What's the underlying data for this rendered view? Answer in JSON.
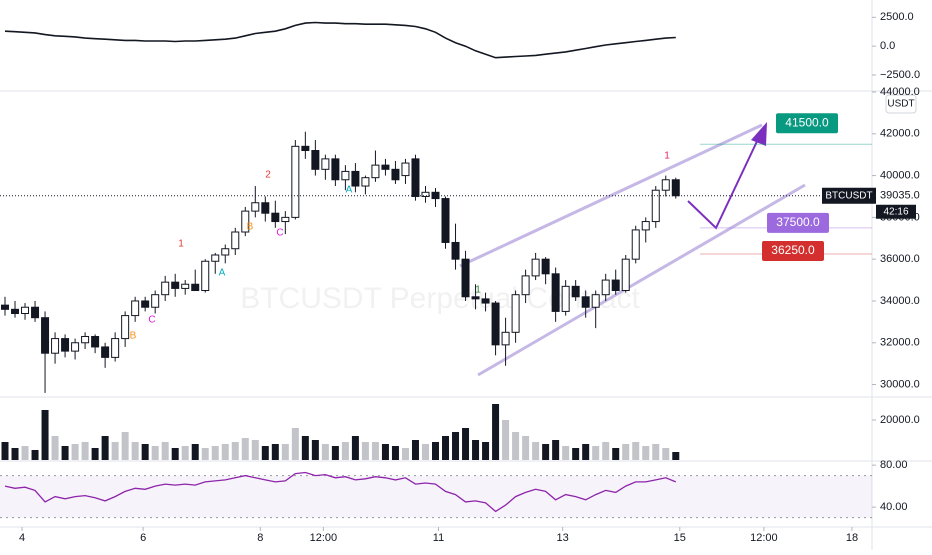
{
  "chart_data": [
    {
      "type": "line",
      "color": "#131722",
      "values": [
        1300,
        1250,
        1200,
        1150,
        1000,
        900,
        850,
        800,
        700,
        650,
        600,
        550,
        500,
        500,
        450,
        450,
        450,
        400,
        450,
        450,
        500,
        550,
        600,
        700,
        900,
        1100,
        1200,
        1300,
        1500,
        1800,
        2000,
        2050,
        2000,
        2000,
        1950,
        1950,
        1900,
        1900,
        1900,
        1850,
        1800,
        1700,
        1500,
        1200,
        700,
        300,
        0,
        -400,
        -700,
        -1000,
        -950,
        -900,
        -850,
        -800,
        -700,
        -600,
        -500,
        -350,
        -200,
        -50,
        100,
        200,
        300,
        400,
        500,
        600,
        700,
        750
      ],
      "ylim": [
        -3800,
        4000
      ],
      "yticks": [
        {
          "value": 2500,
          "label": "2500.0"
        },
        {
          "value": 0,
          "label": "0.0"
        },
        {
          "value": -2500,
          "label": "−2500.0"
        }
      ]
    },
    {
      "type": "candlestick",
      "symbol": "BTCUSDT",
      "currency": "USDT",
      "watermark": "BTCUSDT Perpetual Contract",
      "x": [
        0,
        1,
        2,
        3,
        4,
        5,
        6,
        7,
        8,
        9,
        10,
        11,
        12,
        13,
        14,
        15,
        16,
        17,
        18,
        19,
        20,
        21,
        22,
        23,
        24,
        25,
        26,
        27,
        28,
        29,
        30,
        31,
        32,
        33,
        34,
        35,
        36,
        37,
        38,
        39,
        40,
        41,
        42,
        43,
        44,
        45,
        46,
        47,
        48,
        49,
        50,
        51,
        52,
        53,
        54,
        55,
        56,
        57,
        58,
        59,
        60,
        61,
        62,
        63,
        64,
        65,
        66,
        67
      ],
      "open": [
        33800,
        33600,
        33400,
        33700,
        33200,
        31500,
        32200,
        31600,
        32000,
        32300,
        31800,
        31300,
        32200,
        33300,
        34000,
        33700,
        34300,
        34900,
        34600,
        34800,
        34500,
        35900,
        36200,
        36500,
        37300,
        38300,
        38700,
        38200,
        37800,
        38000,
        41400,
        41200,
        40300,
        40800,
        39800,
        40200,
        39500,
        39900,
        40500,
        40300,
        40000,
        40800,
        39000,
        39200,
        38900,
        36800,
        36000,
        34200,
        34100,
        33900,
        31900,
        32500,
        34300,
        35200,
        36000,
        35300,
        33500,
        34700,
        34200,
        33700,
        34300,
        35000,
        34500,
        36000,
        37400,
        37800,
        39300,
        39800
      ],
      "high": [
        34200,
        34000,
        33900,
        34000,
        33500,
        32500,
        32400,
        32200,
        32500,
        32400,
        32000,
        32500,
        33500,
        34200,
        34200,
        34500,
        35200,
        35300,
        35000,
        35500,
        36000,
        36300,
        36700,
        37500,
        38500,
        39500,
        39000,
        38800,
        38300,
        41700,
        42100,
        41700,
        41000,
        41000,
        40500,
        40600,
        40000,
        41200,
        40800,
        40700,
        40800,
        41000,
        39500,
        39400,
        39000,
        37700,
        36400,
        34800,
        34400,
        34000,
        33200,
        34500,
        35500,
        36300,
        36100,
        35600,
        35000,
        35000,
        34500,
        34500,
        35300,
        35500,
        36200,
        37600,
        38000,
        39500,
        40000,
        39900
      ],
      "low": [
        33300,
        33200,
        33100,
        33000,
        29600,
        31000,
        31300,
        31200,
        31700,
        31500,
        30800,
        31100,
        31800,
        33000,
        33500,
        33400,
        34000,
        34200,
        34300,
        34500,
        34400,
        35300,
        35800,
        36200,
        37100,
        38000,
        37800,
        37500,
        37200,
        37900,
        40800,
        40000,
        39800,
        39500,
        39300,
        39200,
        39100,
        39700,
        40000,
        39600,
        39600,
        38800,
        38700,
        38500,
        36500,
        35500,
        34000,
        33600,
        33500,
        31400,
        30900,
        32000,
        33900,
        35000,
        34800,
        33000,
        33300,
        34000,
        33200,
        32700,
        34000,
        34300,
        34400,
        35800,
        36800,
        37500,
        39000,
        38900
      ],
      "close": [
        33600,
        33400,
        33700,
        33200,
        31500,
        32200,
        31600,
        32000,
        32300,
        31800,
        31300,
        32200,
        33300,
        34000,
        33700,
        34300,
        34900,
        34600,
        34800,
        34500,
        35900,
        36200,
        36500,
        37300,
        38300,
        38700,
        38200,
        37800,
        38000,
        41400,
        41200,
        40300,
        40800,
        39800,
        40200,
        39500,
        39900,
        40500,
        40300,
        39800,
        40600,
        39000,
        39200,
        38900,
        36800,
        36000,
        34200,
        34100,
        33900,
        31900,
        32500,
        34300,
        35200,
        36000,
        35300,
        33500,
        34700,
        34200,
        33700,
        34300,
        35000,
        34500,
        36000,
        37400,
        37800,
        39300,
        39800,
        39035
      ],
      "ylim": [
        29500,
        44000
      ],
      "yticks": [
        {
          "value": 30000,
          "label": "30000.0"
        },
        {
          "value": 32000,
          "label": "32000.0"
        },
        {
          "value": 34000,
          "label": "34000.0"
        },
        {
          "value": 36000,
          "label": "36000.0"
        },
        {
          "value": 38000,
          "label": "38000.0"
        },
        {
          "value": 40000,
          "label": "40000.0"
        },
        {
          "value": 42000,
          "label": "42000.0"
        },
        {
          "value": 44000,
          "label": "44000.0"
        }
      ],
      "xlim": [
        -0.5,
        86.6
      ],
      "xticks": [
        {
          "value": 1.7,
          "label": "4"
        },
        {
          "value": 13.8,
          "label": "6"
        },
        {
          "value": 25.5,
          "label": "8"
        },
        {
          "value": 31.8,
          "label": "12:00"
        },
        {
          "value": 43.3,
          "label": "11"
        },
        {
          "value": 55.7,
          "label": "13"
        },
        {
          "value": 67.4,
          "label": "15"
        },
        {
          "value": 75.8,
          "label": "12:00"
        },
        {
          "value": 84.6,
          "label": "18"
        }
      ],
      "last_price": {
        "value": 39035,
        "label": "39035.0",
        "countdown": "42:16"
      },
      "targets": [
        {
          "value": 41500,
          "label": "41500.0",
          "color": "#089981"
        },
        {
          "value": 37500,
          "label": "37500.0",
          "color": "#9c6ade"
        },
        {
          "value": 36250,
          "label": "36250.0",
          "color": "#d32f2f"
        }
      ],
      "markers": [
        {
          "text": "B",
          "color": "#f7931a"
        },
        {
          "text": "C",
          "color": "#d81bd8"
        },
        {
          "text": "1",
          "color": "#e53935"
        },
        {
          "text": "A",
          "color": "#00acc1"
        },
        {
          "text": "B",
          "color": "#f7931a"
        },
        {
          "text": "2",
          "color": "#e53935"
        },
        {
          "text": "C",
          "color": "#d81bd8"
        },
        {
          "text": "A",
          "color": "#00acc1"
        },
        {
          "text": "1",
          "color": "#2e7d32"
        },
        {
          "text": "1",
          "color": "#e91e63"
        }
      ]
    },
    {
      "type": "bar",
      "up_color": "#c2c4c9",
      "down_color": "#131722",
      "values": [
        9000,
        6000,
        7000,
        5000,
        25000,
        12000,
        7000,
        8000,
        9000,
        6000,
        12000,
        9000,
        14000,
        9000,
        8000,
        7000,
        9000,
        6000,
        7000,
        8000,
        6000,
        7000,
        8000,
        9000,
        11000,
        10000,
        7000,
        8000,
        8000,
        16000,
        12000,
        10000,
        8000,
        7000,
        9000,
        12000,
        9000,
        9000,
        8000,
        7000,
        6000,
        10000,
        8000,
        9000,
        12000,
        14000,
        16000,
        10000,
        9000,
        28000,
        20000,
        14000,
        12000,
        9000,
        8000,
        10000,
        7000,
        6000,
        8000,
        7000,
        9000,
        6000,
        8000,
        9000,
        7000,
        8000,
        6000,
        4000
      ],
      "ylim": [
        0,
        31000
      ],
      "yticks": [
        {
          "value": 20000,
          "label": "20000.0"
        }
      ]
    },
    {
      "type": "line",
      "color": "#8e24aa",
      "band": [
        30,
        70
      ],
      "values": [
        60,
        58,
        59,
        56,
        45,
        50,
        48,
        50,
        51,
        49,
        46,
        50,
        55,
        58,
        57,
        60,
        62,
        61,
        62,
        61,
        64,
        65,
        66,
        68,
        70,
        68,
        66,
        64,
        65,
        72,
        73,
        70,
        71,
        68,
        69,
        66,
        67,
        69,
        68,
        66,
        68,
        62,
        63,
        62,
        55,
        52,
        45,
        46,
        44,
        36,
        42,
        50,
        54,
        57,
        55,
        47,
        52,
        50,
        47,
        52,
        56,
        54,
        60,
        64,
        64,
        66,
        68,
        64
      ],
      "ylim": [
        23,
        83
      ],
      "yticks": [
        {
          "value": 80,
          "label": "80.00"
        },
        {
          "value": 40,
          "label": "40.00"
        }
      ]
    }
  ]
}
